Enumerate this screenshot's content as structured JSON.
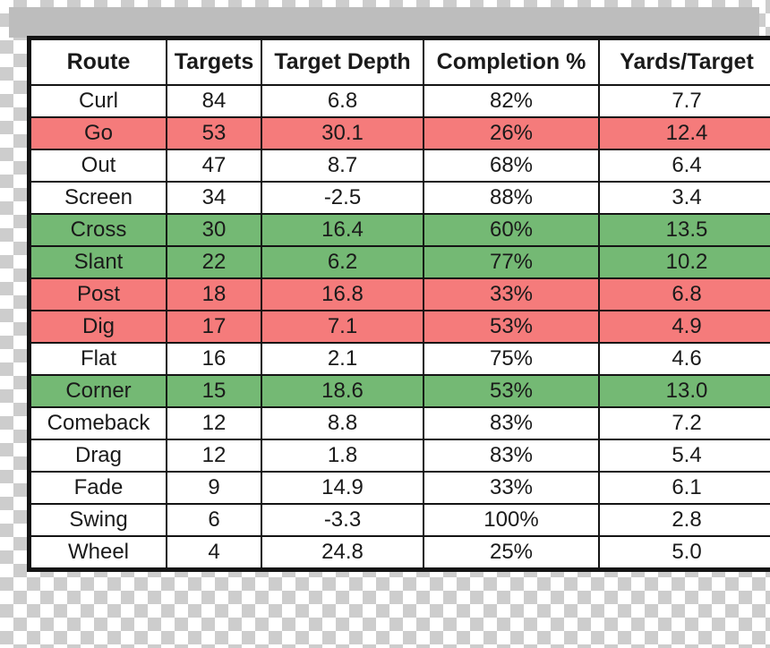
{
  "colors": {
    "red_highlight": "#f57b7b",
    "green_highlight": "#74b974",
    "row_default": "#ffffff",
    "border": "#141414",
    "gray_bar": "#bdbdbd",
    "checker_gray": "#cdcdcd"
  },
  "chart_data": {
    "type": "table",
    "title": "",
    "columns": [
      "Route",
      "Targets",
      "Target Depth",
      "Completion %",
      "Yards/Target"
    ],
    "column_keys": [
      "route",
      "targets",
      "target_depth",
      "completion",
      "yards_target"
    ],
    "rows": [
      [
        "Curl",
        "84",
        "6.8",
        "82%",
        "7.7"
      ],
      [
        "Go",
        "53",
        "30.1",
        "26%",
        "12.4"
      ],
      [
        "Out",
        "47",
        "8.7",
        "68%",
        "6.4"
      ],
      [
        "Screen",
        "34",
        "-2.5",
        "88%",
        "3.4"
      ],
      [
        "Cross",
        "30",
        "16.4",
        "60%",
        "13.5"
      ],
      [
        "Slant",
        "22",
        "6.2",
        "77%",
        "10.2"
      ],
      [
        "Post",
        "18",
        "16.8",
        "33%",
        "6.8"
      ],
      [
        "Dig",
        "17",
        "7.1",
        "53%",
        "4.9"
      ],
      [
        "Flat",
        "16",
        "2.1",
        "75%",
        "4.6"
      ],
      [
        "Corner",
        "15",
        "18.6",
        "53%",
        "13.0"
      ],
      [
        "Comeback",
        "12",
        "8.8",
        "83%",
        "7.2"
      ],
      [
        "Drag",
        "12",
        "1.8",
        "83%",
        "5.4"
      ],
      [
        "Fade",
        "9",
        "14.9",
        "33%",
        "6.1"
      ],
      [
        "Swing",
        "6",
        "-3.3",
        "100%",
        "2.8"
      ],
      [
        "Wheel",
        "4",
        "24.8",
        "25%",
        "5.0"
      ]
    ],
    "row_highlights": [
      "none",
      "red",
      "none",
      "none",
      "green",
      "green",
      "red",
      "red",
      "none",
      "green",
      "none",
      "none",
      "none",
      "none",
      "none"
    ],
    "legend_position": "none",
    "grid": true
  }
}
